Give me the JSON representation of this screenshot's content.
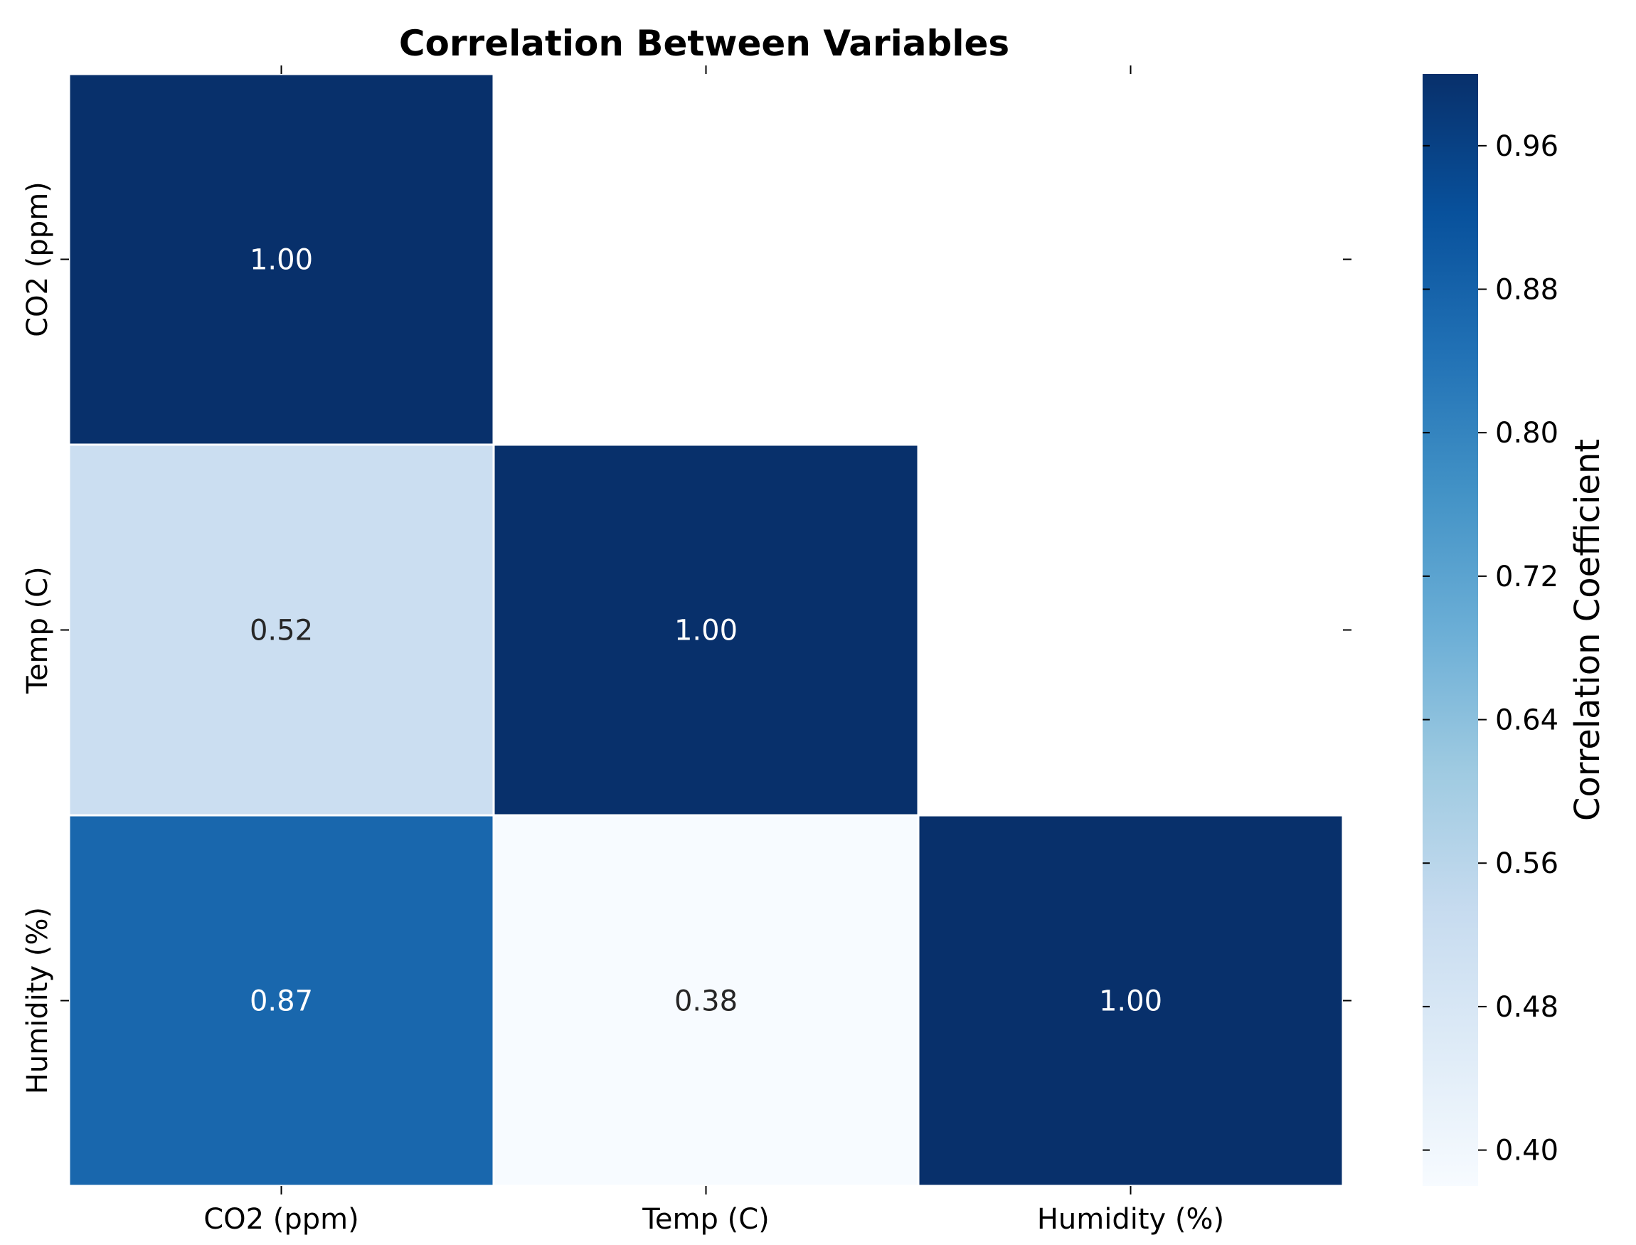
{
  "chart_data": {
    "type": "heatmap",
    "title": "Correlation Between Variables",
    "x_labels": [
      "CO2 (ppm)",
      "Temp (C)",
      "Humidity (%)"
    ],
    "y_labels": [
      "CO2 (ppm)",
      "Temp (C)",
      "Humidity (%)"
    ],
    "values": [
      [
        1.0,
        null,
        null
      ],
      [
        0.52,
        1.0,
        null
      ],
      [
        0.87,
        0.38,
        1.0
      ]
    ],
    "value_labels": [
      [
        "1.00",
        "",
        ""
      ],
      [
        "0.52",
        "1.00",
        ""
      ],
      [
        "0.87",
        "0.38",
        "1.00"
      ]
    ],
    "mask": "upper-triangle",
    "colormap": "Blues",
    "colorbar": {
      "label": "Correlation Coefficient",
      "range": [
        0.38,
        1.0
      ],
      "ticks": [
        0.4,
        0.48,
        0.56,
        0.64,
        0.72,
        0.8,
        0.88,
        0.96
      ],
      "tick_labels": [
        "0.40",
        "0.48",
        "0.56",
        "0.64",
        "0.72",
        "0.80",
        "0.88",
        "0.96"
      ]
    },
    "colors": {
      "Blues": [
        "#f7fbff",
        "#deebf7",
        "#c6dbef",
        "#9ecae1",
        "#6baed6",
        "#4292c6",
        "#2171b5",
        "#08519c",
        "#08306b"
      ],
      "text_light": "#ffffff",
      "text_dark": "#262626"
    }
  }
}
